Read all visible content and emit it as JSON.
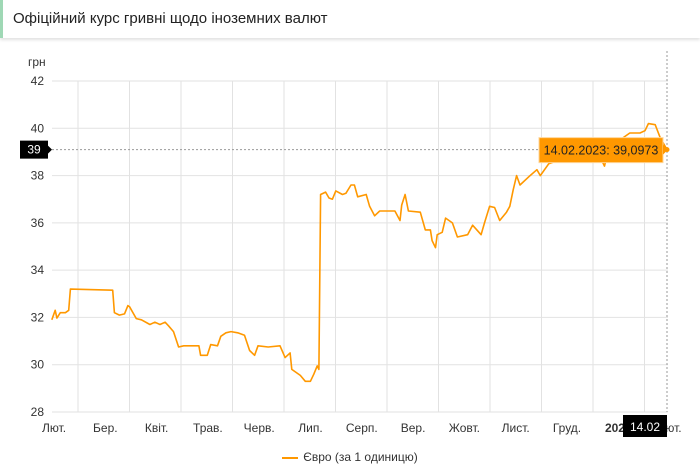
{
  "header": {
    "title": "Офіційний курс гривні щодо іноземних валют"
  },
  "chart_data": {
    "type": "line",
    "title": "",
    "ylabel": "грн",
    "ylim": [
      28,
      42
    ],
    "yticks": [
      28,
      30,
      32,
      34,
      36,
      38,
      40,
      42
    ],
    "xticks": [
      "Лют.",
      "Бер.",
      "Квіт.",
      "Трав.",
      "Черв.",
      "Лип.",
      "Серп.",
      "Вер.",
      "Жовт.",
      "Лист.",
      "Груд.",
      "2023",
      "Лют."
    ],
    "grid": true,
    "legend_position": "bottom",
    "color": "#ff9800",
    "series": [
      {
        "name": "Євро (за 1 одиницю)",
        "points": [
          [
            "2022-02-15",
            31.9
          ],
          [
            "2022-02-17",
            32.3
          ],
          [
            "2022-02-18",
            31.97
          ],
          [
            "2022-02-20",
            32.2
          ],
          [
            "2022-02-23",
            32.2
          ],
          [
            "2022-02-25",
            32.3
          ],
          [
            "2022-02-26",
            33.2
          ],
          [
            "2022-03-23",
            33.15
          ],
          [
            "2022-03-24",
            32.2
          ],
          [
            "2022-03-27",
            32.1
          ],
          [
            "2022-03-30",
            32.15
          ],
          [
            "2022-04-01",
            32.5
          ],
          [
            "2022-04-02",
            32.45
          ],
          [
            "2022-04-06",
            31.95
          ],
          [
            "2022-04-09",
            31.9
          ],
          [
            "2022-04-14",
            31.7
          ],
          [
            "2022-04-17",
            31.8
          ],
          [
            "2022-04-20",
            31.7
          ],
          [
            "2022-04-23",
            31.8
          ],
          [
            "2022-04-25",
            31.65
          ],
          [
            "2022-04-28",
            31.4
          ],
          [
            "2022-05-01",
            30.75
          ],
          [
            "2022-05-04",
            30.8
          ],
          [
            "2022-05-13",
            30.8
          ],
          [
            "2022-05-14",
            30.4
          ],
          [
            "2022-05-18",
            30.4
          ],
          [
            "2022-05-20",
            30.85
          ],
          [
            "2022-05-24",
            30.8
          ],
          [
            "2022-05-26",
            31.2
          ],
          [
            "2022-05-29",
            31.35
          ],
          [
            "2022-06-01",
            31.4
          ],
          [
            "2022-06-05",
            31.35
          ],
          [
            "2022-06-09",
            31.25
          ],
          [
            "2022-06-12",
            30.6
          ],
          [
            "2022-06-15",
            30.4
          ],
          [
            "2022-06-17",
            30.8
          ],
          [
            "2022-06-23",
            30.75
          ],
          [
            "2022-06-30",
            30.8
          ],
          [
            "2022-07-03",
            30.3
          ],
          [
            "2022-07-06",
            30.5
          ],
          [
            "2022-07-07",
            29.8
          ],
          [
            "2022-07-12",
            29.55
          ],
          [
            "2022-07-15",
            29.3
          ],
          [
            "2022-07-18",
            29.3
          ],
          [
            "2022-07-20",
            29.6
          ],
          [
            "2022-07-22",
            29.95
          ],
          [
            "2022-07-23",
            29.8
          ],
          [
            "2022-07-24",
            37.2
          ],
          [
            "2022-07-27",
            37.3
          ],
          [
            "2022-07-29",
            37.05
          ],
          [
            "2022-07-31",
            37.0
          ],
          [
            "2022-08-02",
            37.35
          ],
          [
            "2022-08-06",
            37.2
          ],
          [
            "2022-08-08",
            37.25
          ],
          [
            "2022-08-11",
            37.6
          ],
          [
            "2022-08-13",
            37.6
          ],
          [
            "2022-08-15",
            37.1
          ],
          [
            "2022-08-20",
            37.2
          ],
          [
            "2022-08-22",
            36.7
          ],
          [
            "2022-08-25",
            36.3
          ],
          [
            "2022-08-28",
            36.5
          ],
          [
            "2022-09-06",
            36.5
          ],
          [
            "2022-09-09",
            36.1
          ],
          [
            "2022-09-10",
            36.75
          ],
          [
            "2022-09-12",
            37.2
          ],
          [
            "2022-09-14",
            36.5
          ],
          [
            "2022-09-21",
            36.45
          ],
          [
            "2022-09-24",
            35.7
          ],
          [
            "2022-09-27",
            35.7
          ],
          [
            "2022-09-28",
            35.25
          ],
          [
            "2022-09-30",
            34.95
          ],
          [
            "2022-10-01",
            35.5
          ],
          [
            "2022-10-04",
            35.6
          ],
          [
            "2022-10-06",
            36.2
          ],
          [
            "2022-10-10",
            36.0
          ],
          [
            "2022-10-13",
            35.4
          ],
          [
            "2022-10-19",
            35.5
          ],
          [
            "2022-10-22",
            35.9
          ],
          [
            "2022-10-27",
            35.5
          ],
          [
            "2022-10-29",
            36.0
          ],
          [
            "2022-11-01",
            36.7
          ],
          [
            "2022-11-04",
            36.65
          ],
          [
            "2022-11-07",
            36.1
          ],
          [
            "2022-11-11",
            36.45
          ],
          [
            "2022-11-13",
            36.7
          ],
          [
            "2022-11-15",
            37.4
          ],
          [
            "2022-11-17",
            38.0
          ],
          [
            "2022-11-19",
            37.6
          ],
          [
            "2022-11-25",
            38.0
          ],
          [
            "2022-11-29",
            38.25
          ],
          [
            "2022-12-01",
            38.0
          ],
          [
            "2022-12-06",
            38.5
          ],
          [
            "2022-12-10",
            38.6
          ],
          [
            "2022-12-16",
            38.7
          ],
          [
            "2022-12-25",
            38.7
          ],
          [
            "2022-12-31",
            38.9
          ],
          [
            "2023-01-06",
            38.7
          ],
          [
            "2023-01-08",
            38.4
          ],
          [
            "2023-01-11",
            39.3
          ],
          [
            "2023-01-17",
            39.5
          ],
          [
            "2023-01-23",
            39.8
          ],
          [
            "2023-01-29",
            39.8
          ],
          [
            "2023-02-01",
            39.9
          ],
          [
            "2023-02-03",
            40.2
          ],
          [
            "2023-02-07",
            40.15
          ],
          [
            "2023-02-10",
            39.6
          ],
          [
            "2023-02-14",
            39.0973
          ]
        ]
      }
    ],
    "tooltip": {
      "text": "14.02.2023: 39,0973"
    },
    "crosshair": {
      "y_label": "39",
      "x_label": "14.02"
    }
  }
}
